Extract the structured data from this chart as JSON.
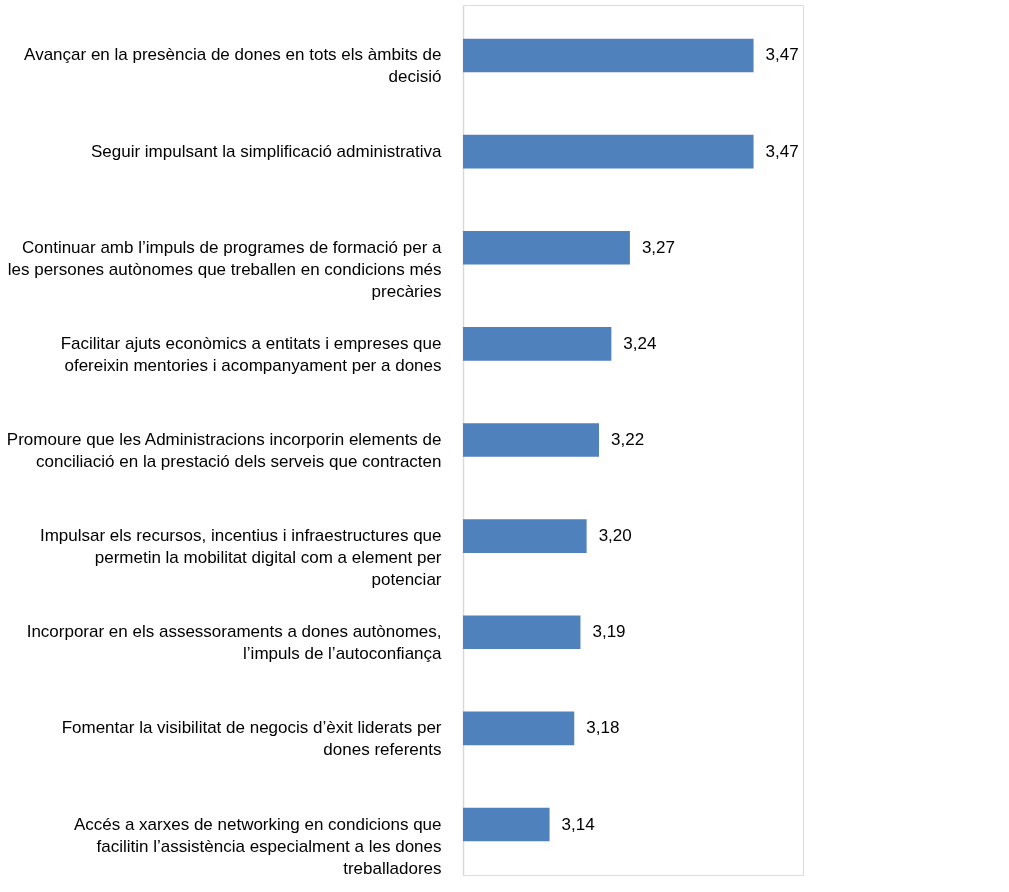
{
  "chart_data": {
    "type": "bar",
    "orientation": "horizontal",
    "categories": [
      "Avançar en la presència de dones en tots els àmbits de decisió",
      "Seguir impulsant la simplificació administrativa",
      "Continuar amb l’impuls de programes de formació per a les persones autònomes que treballen en condicions més precàries",
      "Facilitar ajuts econòmics a entitats i empreses que ofereixin mentories i acompanyament per a dones",
      "Promoure que les Administracions incorporin elements de conciliació en la prestació dels serveis que contracten",
      "Impulsar els recursos, incentius i infraestructures que permetin la mobilitat digital com a element per potenciar",
      "Incorporar en els assessoraments a dones autònomes, l’impuls de l’autoconfiança",
      "Fomentar la visibilitat de negocis d’èxit liderats per dones referents",
      "Accés a xarxes de networking en condicions que facilitin l’assistència especialment a les dones treballadores"
    ],
    "values": [
      3.47,
      3.47,
      3.27,
      3.24,
      3.22,
      3.2,
      3.19,
      3.18,
      3.14
    ],
    "value_labels": [
      "3,47",
      "3,47",
      "3,27",
      "3,24",
      "3,22",
      "3,20",
      "3,19",
      "3,18",
      "3,14"
    ],
    "color": "#4f81bd",
    "xlim": [
      3,
      3.55
    ],
    "tick_labels": "y"
  }
}
